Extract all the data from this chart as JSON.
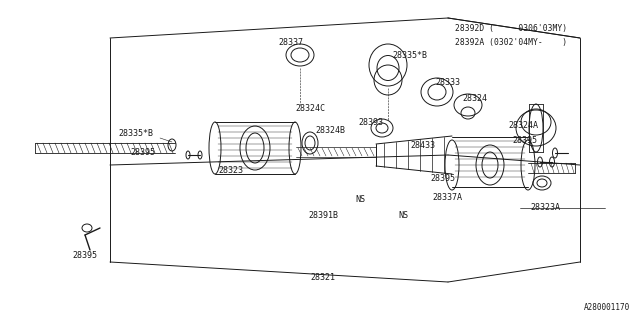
{
  "bg_color": "#ffffff",
  "line_color": "#1a1a1a",
  "text_color": "#1a1a1a",
  "fig_width": 6.4,
  "fig_height": 3.2,
  "dpi": 100,
  "watermark": "A280001170",
  "box_label1": "28392D (    -0306'03MY)",
  "box_label2": "28392A (0302'04MY-    )"
}
